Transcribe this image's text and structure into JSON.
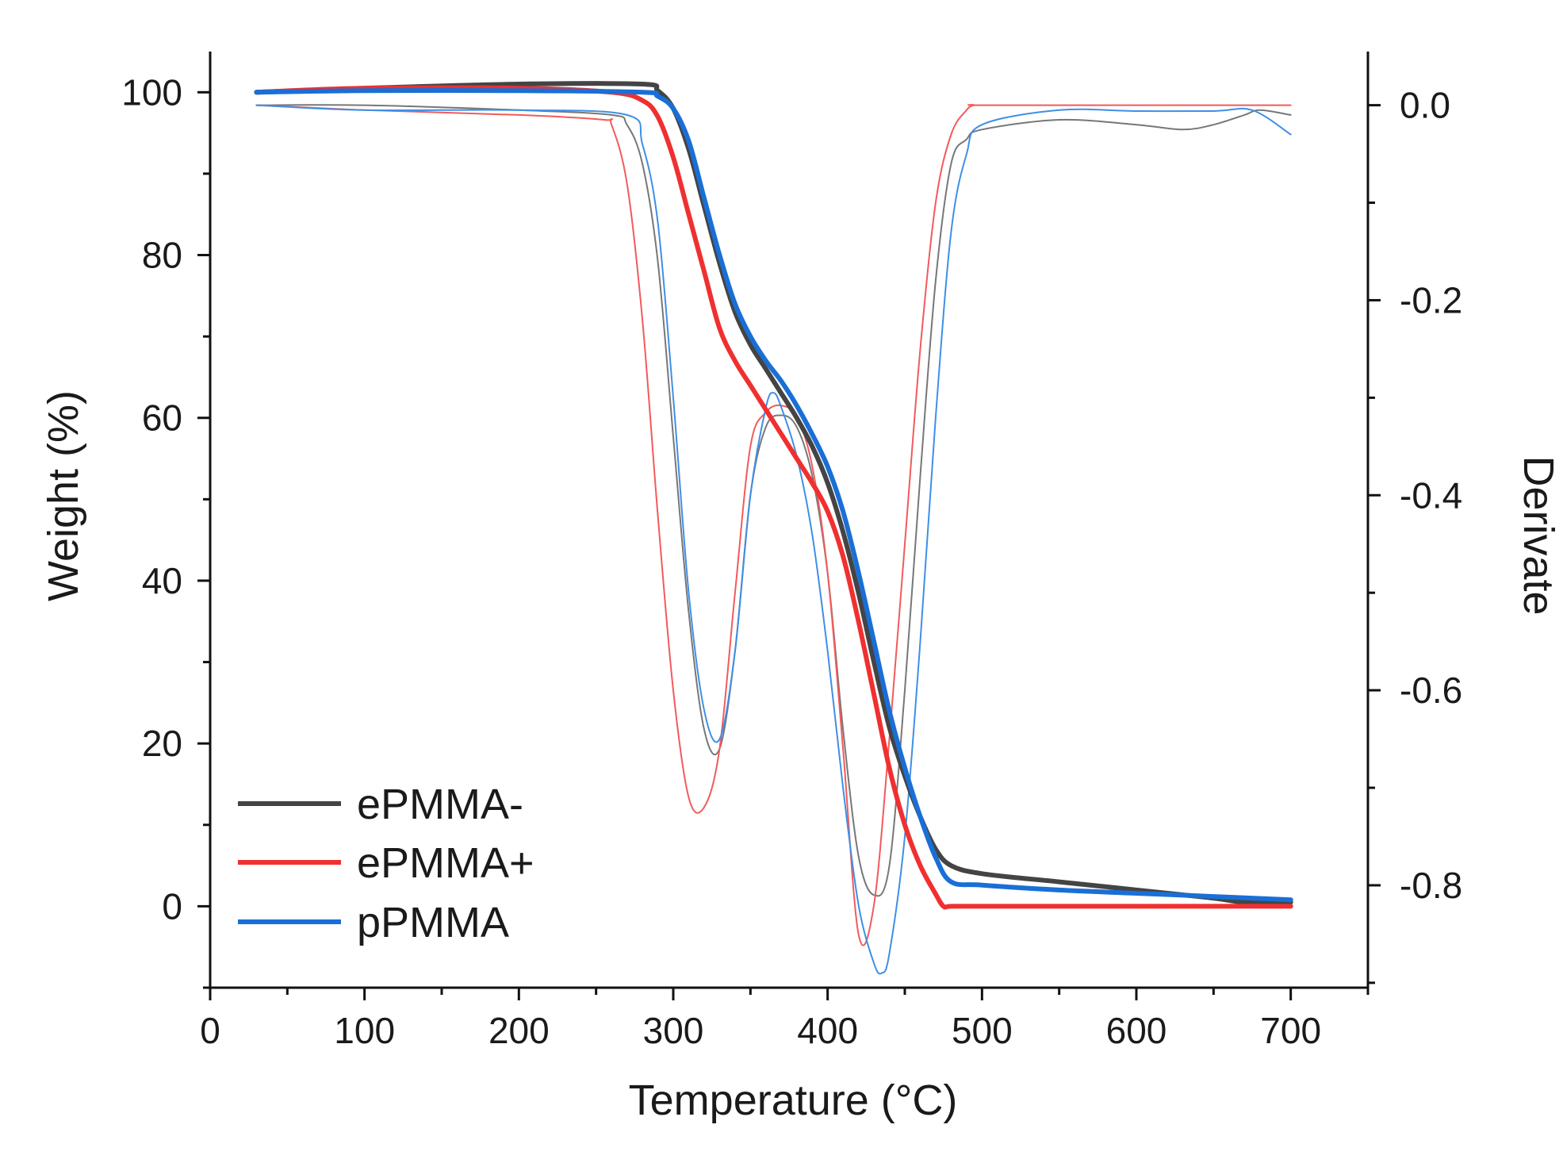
{
  "chart_data": {
    "type": "line",
    "title": "",
    "xlabel": "Temperature (°C)",
    "ylabel": "Weight (%)",
    "y2label": "Derivate",
    "xlim": [
      0,
      750
    ],
    "ylim": [
      -10,
      105
    ],
    "y2lim": [
      -0.905,
      0.055
    ],
    "xticks": [
      0,
      100,
      200,
      300,
      400,
      500,
      600,
      700
    ],
    "yticks": [
      0,
      20,
      40,
      60,
      80,
      100
    ],
    "y2ticks": [
      0.0,
      -0.2,
      -0.4,
      -0.6,
      -0.8
    ],
    "xtick_labels": [
      "0",
      "100",
      "200",
      "300",
      "400",
      "500",
      "600",
      "700"
    ],
    "ytick_labels": [
      "0",
      "20",
      "40",
      "60",
      "80",
      "100"
    ],
    "y2tick_labels": [
      "0.0",
      "-0.2",
      "-0.4",
      "-0.6",
      "-0.8"
    ],
    "legend": {
      "position": "bottom-left",
      "entries": [
        {
          "name": "ePMMA-",
          "color": "#444444"
        },
        {
          "name": "ePMMA+",
          "color": "#f03030"
        },
        {
          "name": "pPMMA",
          "color": "#1a6fd6"
        }
      ]
    },
    "series": [
      {
        "name": "ePMMA-",
        "axis": "left",
        "color": "#444444",
        "x": [
          30,
          100,
          200,
          280,
          290,
          300,
          310,
          320,
          330,
          340,
          350,
          360,
          370,
          380,
          390,
          400,
          410,
          420,
          430,
          440,
          450,
          460,
          470,
          480,
          500,
          550,
          600,
          650,
          670,
          700
        ],
        "y": [
          100,
          100.5,
          101,
          101,
          100.2,
          98,
          93,
          86,
          79,
          73,
          69,
          66,
          63,
          60,
          56.5,
          52,
          46,
          38.5,
          30,
          22,
          16,
          11,
          7,
          5,
          4,
          3,
          2,
          1,
          0.5,
          0.5
        ]
      },
      {
        "name": "ePMMA+",
        "axis": "left",
        "color": "#f03030",
        "x": [
          30,
          100,
          200,
          260,
          280,
          290,
          300,
          310,
          320,
          330,
          340,
          350,
          360,
          370,
          380,
          390,
          400,
          410,
          420,
          430,
          440,
          450,
          460,
          470,
          475,
          480,
          500,
          600,
          700
        ],
        "y": [
          100,
          100.5,
          100.5,
          100,
          99,
          97,
          92,
          85,
          78,
          71,
          67,
          64,
          61,
          58,
          55,
          52,
          48.5,
          43,
          35,
          26,
          17,
          10,
          5,
          1.5,
          0,
          0,
          0,
          0,
          0
        ]
      },
      {
        "name": "pPMMA",
        "axis": "left",
        "color": "#1a6fd6",
        "x": [
          30,
          100,
          200,
          280,
          290,
          300,
          310,
          320,
          330,
          340,
          350,
          360,
          370,
          380,
          390,
          400,
          410,
          420,
          430,
          440,
          450,
          460,
          470,
          480,
          500,
          550,
          600,
          650,
          700
        ],
        "y": [
          100,
          100.2,
          100.2,
          100,
          99.5,
          98,
          94,
          87,
          80,
          74,
          70,
          67,
          64.5,
          61.5,
          58,
          54,
          48.5,
          41,
          32.5,
          24,
          17,
          11,
          6,
          3,
          2.6,
          2,
          1.6,
          1.2,
          0.8
        ]
      },
      {
        "name": "ePMMA- derivative",
        "axis": "right",
        "color": "#777777",
        "x": [
          30,
          100,
          200,
          260,
          270,
          280,
          290,
          300,
          310,
          320,
          330,
          340,
          350,
          360,
          370,
          380,
          390,
          400,
          410,
          420,
          430,
          440,
          450,
          460,
          470,
          480,
          490,
          500,
          550,
          600,
          630,
          650,
          670,
          680,
          700
        ],
        "y": [
          0,
          0,
          -0.005,
          -0.01,
          -0.02,
          -0.06,
          -0.16,
          -0.34,
          -0.52,
          -0.64,
          -0.66,
          -0.56,
          -0.4,
          -0.33,
          -0.318,
          -0.33,
          -0.38,
          -0.48,
          -0.64,
          -0.77,
          -0.81,
          -0.78,
          -0.6,
          -0.38,
          -0.18,
          -0.06,
          -0.035,
          -0.025,
          -0.015,
          -0.02,
          -0.025,
          -0.02,
          -0.01,
          -0.005,
          -0.01
        ]
      },
      {
        "name": "ePMMA+ derivative",
        "axis": "right",
        "color": "#f35a5a",
        "x": [
          30,
          100,
          200,
          255,
          260,
          270,
          280,
          290,
          300,
          310,
          320,
          330,
          340,
          350,
          360,
          370,
          380,
          390,
          400,
          410,
          420,
          430,
          440,
          450,
          460,
          470,
          480,
          490,
          495,
          500,
          600,
          700
        ],
        "y": [
          0,
          -0.005,
          -0.01,
          -0.015,
          -0.02,
          -0.08,
          -0.22,
          -0.42,
          -0.6,
          -0.71,
          -0.72,
          -0.66,
          -0.5,
          -0.35,
          -0.315,
          -0.308,
          -0.32,
          -0.37,
          -0.48,
          -0.66,
          -0.85,
          -0.82,
          -0.65,
          -0.45,
          -0.25,
          -0.1,
          -0.03,
          -0.005,
          0,
          0,
          0,
          0
        ]
      },
      {
        "name": "pPMMA derivative",
        "axis": "right",
        "color": "#3f8fe6",
        "x": [
          30,
          100,
          200,
          270,
          280,
          290,
          300,
          310,
          320,
          330,
          340,
          350,
          360,
          365,
          370,
          380,
          390,
          400,
          410,
          420,
          430,
          435,
          440,
          450,
          460,
          470,
          480,
          490,
          500,
          550,
          600,
          650,
          675,
          700
        ],
        "y": [
          0,
          -0.005,
          -0.005,
          -0.01,
          -0.04,
          -0.12,
          -0.3,
          -0.5,
          -0.62,
          -0.65,
          -0.56,
          -0.4,
          -0.31,
          -0.295,
          -0.31,
          -0.36,
          -0.44,
          -0.56,
          -0.7,
          -0.82,
          -0.88,
          -0.89,
          -0.87,
          -0.75,
          -0.55,
          -0.32,
          -0.13,
          -0.05,
          -0.02,
          -0.005,
          -0.006,
          -0.006,
          -0.005,
          -0.03
        ]
      }
    ]
  }
}
